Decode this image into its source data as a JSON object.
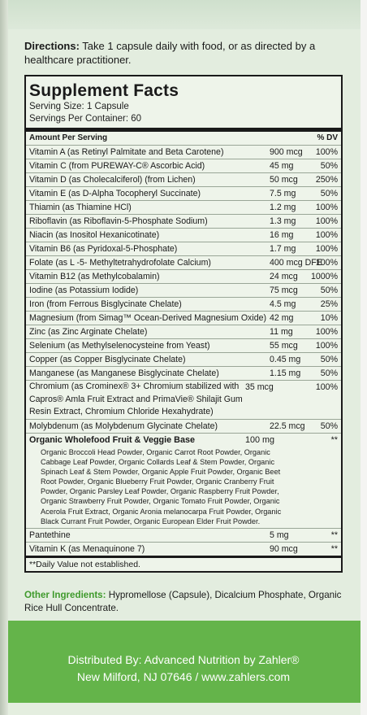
{
  "directions": {
    "label": "Directions:",
    "text": "Take 1 capsule daily with food, or as directed by a healthcare practitioner."
  },
  "facts": {
    "title": "Supplement Facts",
    "serving_size": "Serving Size: 1 Capsule",
    "servings_per_container": "Servings Per Container: 60",
    "col_amount": "Amount Per Serving",
    "col_dv": "% DV",
    "rows": [
      {
        "name": "Vitamin A (as Retinyl Palmitate and Beta Carotene)",
        "amount": "900 mcg",
        "dv": "100%"
      },
      {
        "name": "Vitamin C (from PUREWAY-C® Ascorbic Acid)",
        "amount": "45 mg",
        "dv": "50%"
      },
      {
        "name": "Vitamin D (as Cholecalciferol) (from Lichen)",
        "amount": "50 mcg",
        "dv": "250%"
      },
      {
        "name": "Vitamin E (as D-Alpha Tocopheryl Succinate)",
        "amount": "7.5 mg",
        "dv": "50%"
      },
      {
        "name": "Thiamin (as Thiamine HCl)",
        "amount": "1.2 mg",
        "dv": "100%"
      },
      {
        "name": "Riboflavin (as Riboflavin-5-Phosphate Sodium)",
        "amount": "1.3 mg",
        "dv": "100%"
      },
      {
        "name": "Niacin (as Inositol Hexanicotinate)",
        "amount": "16 mg",
        "dv": "100%"
      },
      {
        "name": "Vitamin B6 (as Pyridoxal-5-Phosphate)",
        "amount": "1.7 mg",
        "dv": "100%"
      },
      {
        "name": "Folate (as L -5- Methyltetrahydrofolate Calcium)",
        "amount": "400 mcg DFE",
        "dv": "100%"
      },
      {
        "name": "Vitamin B12 (as Methylcobalamin)",
        "amount": "24 mcg",
        "dv": "1000%"
      },
      {
        "name": "Iodine (as Potassium Iodide)",
        "amount": "75 mcg",
        "dv": "50%"
      },
      {
        "name": "Iron (from Ferrous Bisglycinate Chelate)",
        "amount": "4.5 mg",
        "dv": "25%"
      },
      {
        "name": "Magnesium (from Simag™ Ocean-Derived Magnesium Oxide)",
        "amount": "42 mg",
        "dv": "10%"
      },
      {
        "name": "Zinc (as Zinc Arginate Chelate)",
        "amount": "11 mg",
        "dv": "100%"
      },
      {
        "name": "Selenium (as Methylselenocysteine from Yeast)",
        "amount": "55 mcg",
        "dv": "100%"
      },
      {
        "name": "Copper (as Copper Bisglycinate Chelate)",
        "amount": "0.45 mg",
        "dv": "50%"
      },
      {
        "name": "Manganese (as Manganese Bisglycinate Chelate)",
        "amount": "1.15 mg",
        "dv": "50%"
      }
    ],
    "chromium": {
      "name": "Chromium (as Crominex® 3+ Chromium stabilized with Capros® Amla Fruit Extract and PrimaVie® Shilajit Gum Resin Extract, Chromium Chloride Hexahydrate)",
      "amount": "35 mcg",
      "dv": "100%"
    },
    "molybdenum": {
      "name": "Molybdenum (as Molybdenum Glycinate Chelate)",
      "amount": "22.5 mcg",
      "dv": "50%"
    },
    "wholefood": {
      "title": "Organic Wholefood Fruit & Veggie Base",
      "amount": "100 mg",
      "dv": "**",
      "desc": "Organic Broccoli Head Powder, Organic Carrot Root Powder, Organic Cabbage Leaf Powder, Organic Collards Leaf & Stem Powder, Organic Spinach Leaf & Stem Powder, Organic Apple Fruit Powder, Organic Beet Root Powder, Organic Blueberry Fruit Powder, Organic Cranberry Fruit Powder, Organic Parsley Leaf Powder, Organic Raspberry Fruit Powder, Organic Strawberry Fruit Powder, Organic Tomato Fruit Powder, Organic Acerola Fruit Extract, Organic Aronia melanocarpa Fruit Powder, Organic Black Currant Fruit Powder, Organic European Elder Fruit Powder."
    },
    "pantethine": {
      "name": "Pantethine",
      "amount": "5 mg",
      "dv": "**"
    },
    "vitamin_k": {
      "name": "Vitamin K (as Menaquinone 7)",
      "amount": "90 mcg",
      "dv": "**"
    },
    "note": "**Daily Value not established."
  },
  "other": {
    "label": "Other Ingredients:",
    "text": "Hypromellose (Capsule), Dicalcium Phosphate, Organic Rice Hull Concentrate."
  },
  "distributor": {
    "line1": "Distributed By: Advanced Nutrition by Zahler®",
    "line2": "New Milford, NJ 07646 / www.zahlers.com"
  },
  "colors": {
    "panel": "#e3eddf",
    "brand_green": "#64b44a",
    "accent_green": "#3f9a2c"
  }
}
